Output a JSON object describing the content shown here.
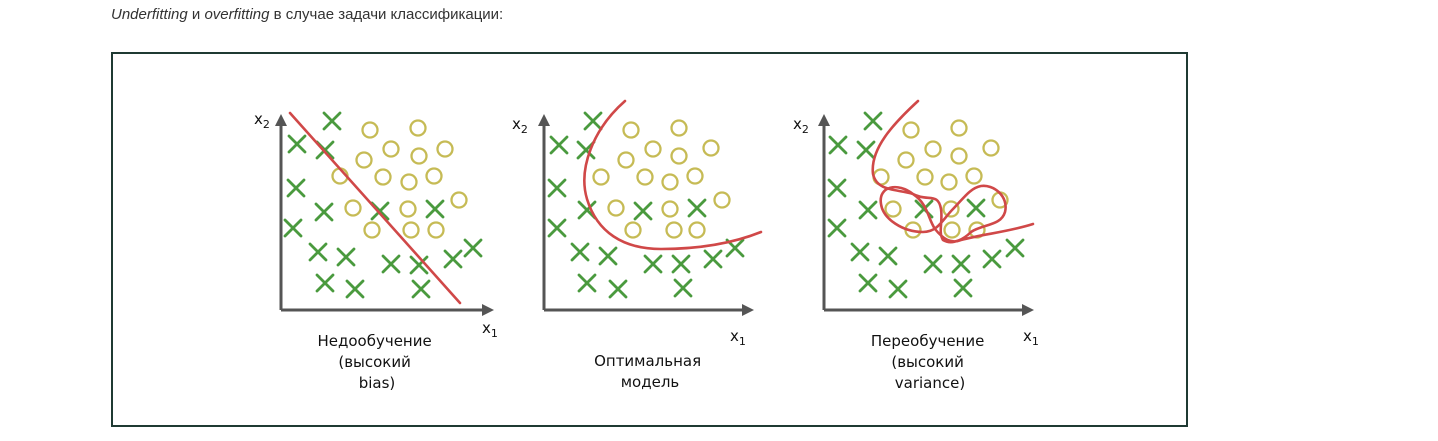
{
  "caption": {
    "part1": "Underfitting",
    "part2": " и ",
    "part3": "overfitting",
    "part4": " в случае задачи классификации:"
  },
  "axes": {
    "x_label": "x",
    "x_sub": "1",
    "y_label": "x",
    "y_sub": "2"
  },
  "panels": [
    {
      "line1": "Недообучение",
      "line2": "(высокий",
      "line3": "bias)"
    },
    {
      "line1": "Оптимальная",
      "line2": "модель"
    },
    {
      "line1": "Переобучение",
      "line2": "(высокий",
      "line3": "variance)"
    }
  ],
  "colors": {
    "class_x": "#4a9a3e",
    "class_o": "#c6bb55",
    "boundary": "#d04848",
    "axis": "#555555",
    "frame": "#1f3a33"
  }
}
